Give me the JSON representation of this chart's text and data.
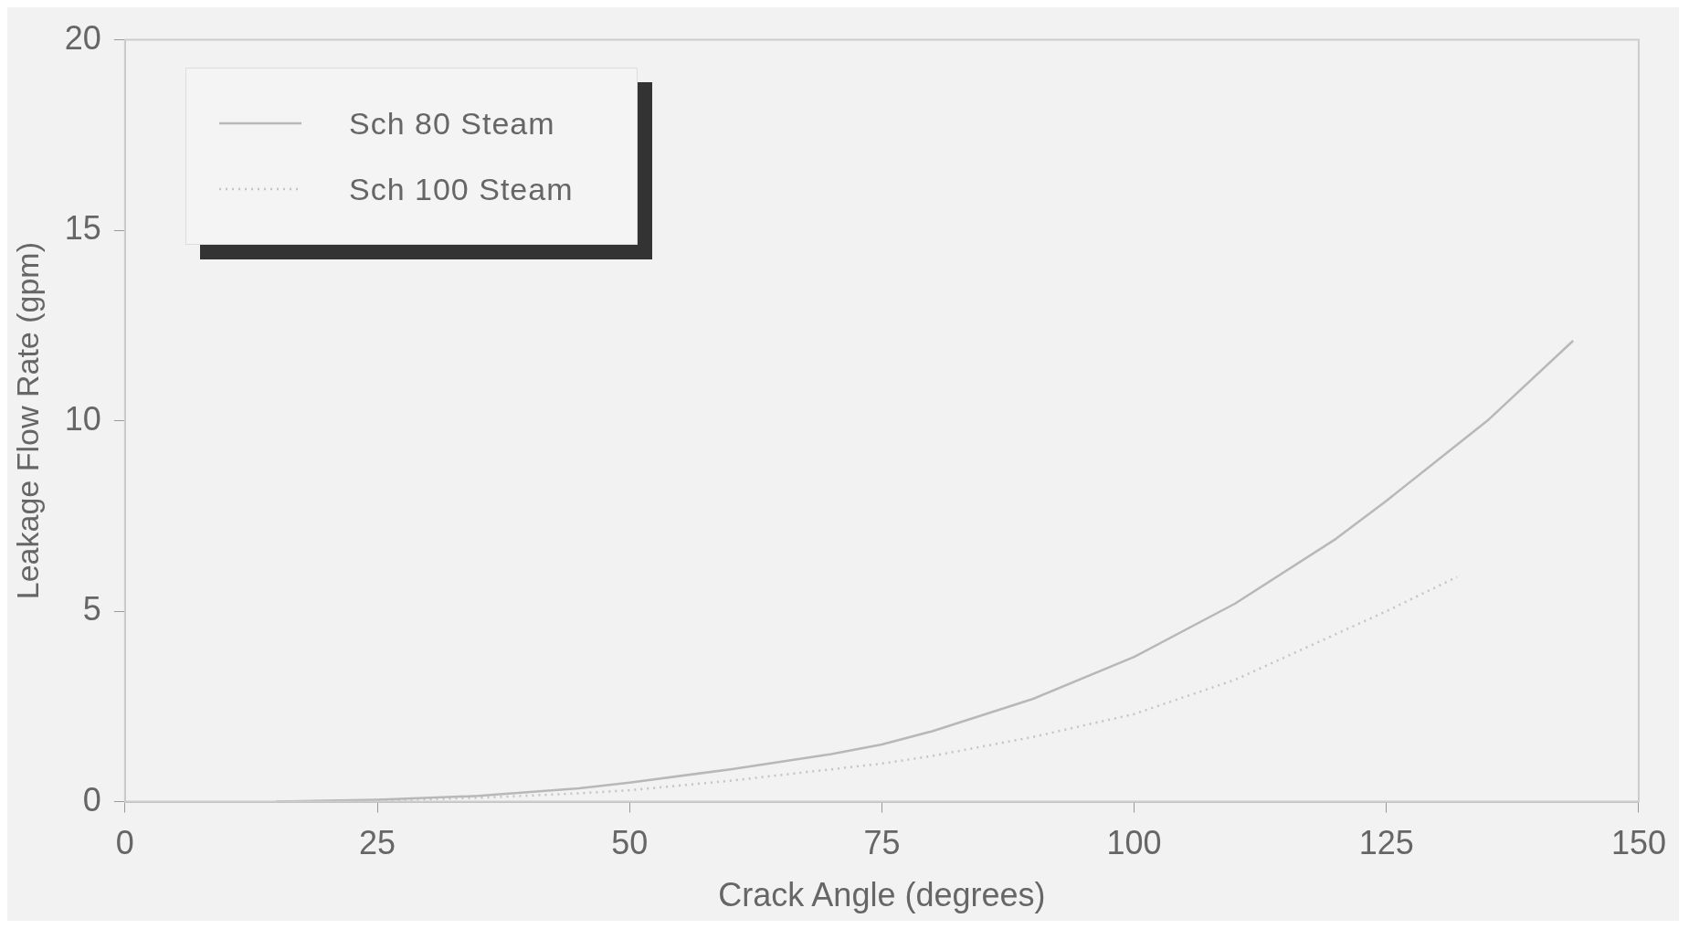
{
  "chart_data": {
    "type": "line",
    "xlabel": "Crack Angle (degrees)",
    "ylabel": "Leakage Flow Rate (gpm)",
    "xlim": [
      0,
      150
    ],
    "ylim": [
      0,
      20
    ],
    "xticks": [
      0,
      25,
      50,
      75,
      100,
      125,
      150
    ],
    "yticks": [
      0,
      5,
      10,
      15,
      20
    ],
    "grid": false,
    "legend": "top left",
    "marker": "none",
    "series": [
      {
        "name": "Sch 80 Steam",
        "color": "#b8b8b8",
        "line_style": "solid",
        "x": [
          15,
          25,
          35,
          45,
          50,
          60,
          70,
          75,
          80,
          90,
          100,
          110,
          120,
          125,
          135,
          143.5
        ],
        "values": [
          0,
          0.05,
          0.15,
          0.35,
          0.5,
          0.85,
          1.25,
          1.5,
          1.85,
          2.7,
          3.8,
          5.2,
          6.9,
          7.9,
          10,
          12.1
        ]
      },
      {
        "name": "Sch 100 Steam",
        "color": "#c4c4c4",
        "line_style": "dotted",
        "x": [
          15,
          25,
          35,
          45,
          50,
          60,
          70,
          75,
          80,
          90,
          100,
          110,
          120,
          125,
          132
        ],
        "values": [
          0,
          0.03,
          0.1,
          0.22,
          0.3,
          0.55,
          0.85,
          1.0,
          1.2,
          1.7,
          2.3,
          3.2,
          4.4,
          5.0,
          5.9
        ]
      }
    ]
  }
}
